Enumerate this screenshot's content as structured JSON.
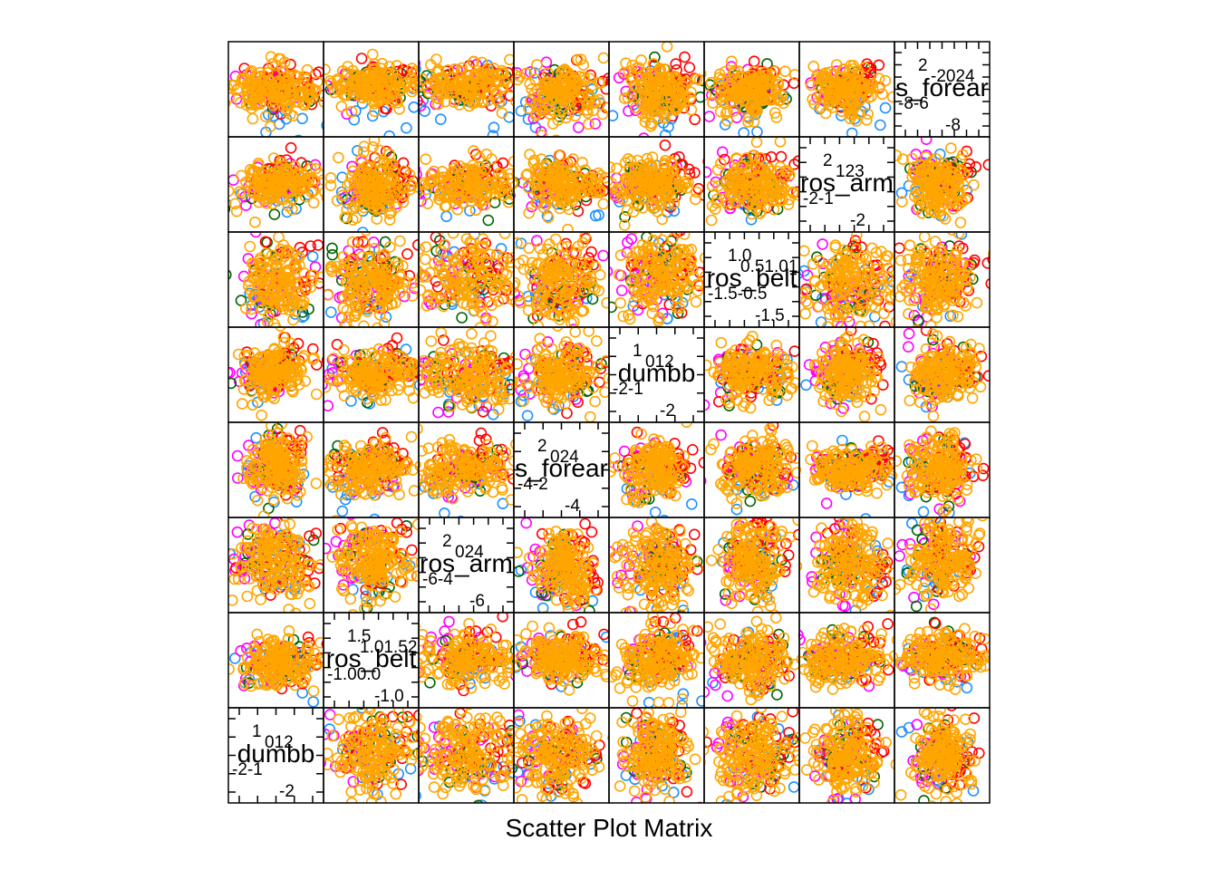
{
  "title": "Scatter Plot Matrix",
  "colors": {
    "group_blue": "#1e90ff",
    "group_magenta": "#ff00ff",
    "group_green": "#006400",
    "group_red": "#ff0000",
    "group_orange": "#ffa500",
    "frame": "#000000"
  },
  "chart_data": {
    "type": "scatter",
    "variables": [
      {
        "label": "dumbb",
        "ticks": [
          "-2",
          "-1",
          "0",
          "1",
          "2"
        ],
        "range": [
          -2.6,
          2.6
        ]
      },
      {
        "label": "ros_belt",
        "ticks": [
          "-1.0",
          "0.0",
          "0.5",
          "1.0",
          "1.5",
          "2.0"
        ],
        "range": [
          -1.4,
          2.2
        ]
      },
      {
        "label": "ros_arm",
        "ticks": [
          "-6",
          "-4",
          "-2",
          "0",
          "2",
          "4"
        ],
        "range": [
          -6.8,
          5.0
        ]
      },
      {
        "label": "s_forear",
        "ticks": [
          "-4",
          "-2",
          "0",
          "2",
          "4"
        ],
        "range": [
          -5.0,
          5.0
        ]
      },
      {
        "label": "dumbb",
        "ticks": [
          "-2",
          "-1",
          "0",
          "1",
          "2"
        ],
        "range": [
          -2.6,
          2.6
        ]
      },
      {
        "label": "ros_belt",
        "ticks": [
          "-1.5",
          "-0.5",
          "0.0",
          "0.5",
          "1.0",
          "1.5"
        ],
        "range": [
          -1.8,
          1.8
        ]
      },
      {
        "label": "ros_arm",
        "ticks": [
          "-2",
          "-1",
          "0",
          "1",
          "2",
          "3"
        ],
        "range": [
          -2.6,
          3.4
        ]
      },
      {
        "label": "s_forear",
        "ticks": [
          "-8",
          "-6",
          "-4",
          "-2",
          "0",
          "2",
          "4"
        ],
        "range": [
          -8.5,
          4.5
        ]
      }
    ],
    "groups": [
      {
        "color": "#1e90ff"
      },
      {
        "color": "#ff00ff"
      },
      {
        "color": "#006400"
      },
      {
        "color": "#ff0000"
      },
      {
        "color": "#ffa500"
      }
    ],
    "grid": false,
    "legend": "none"
  }
}
